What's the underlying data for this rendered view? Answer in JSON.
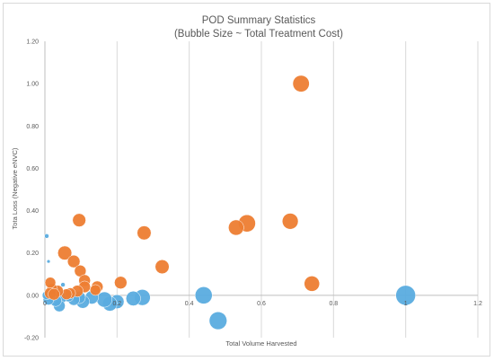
{
  "chart_data": {
    "type": "scatter",
    "title": "POD Summary Statistics",
    "subtitle": "(Bubble Size ~ Total Treatment Cost)",
    "xlabel": "Total Volume Harvested",
    "ylabel": "Tota Loss (Negative eNVC)",
    "xlim": [
      0,
      1.2
    ],
    "ylim": [
      -0.2,
      1.2
    ],
    "x_ticks": [
      "0",
      "0.2",
      "0.4",
      "0.6",
      "0.8",
      "1",
      "1.2"
    ],
    "y_ticks": [
      "-0.20",
      "0.00",
      "0.20",
      "0.40",
      "0.60",
      "0.80",
      "1.00",
      "1.20"
    ],
    "grid": "vertical",
    "legend": "none",
    "series": [
      {
        "color": "#5aacdf",
        "points": [
          {
            "x": 1.0,
            "y": 0.0,
            "size": 1.0
          },
          {
            "x": 0.48,
            "y": -0.12,
            "size": 0.8
          },
          {
            "x": 0.44,
            "y": 0.0,
            "size": 0.75
          },
          {
            "x": 0.27,
            "y": -0.01,
            "size": 0.65
          },
          {
            "x": 0.245,
            "y": -0.015,
            "size": 0.55
          },
          {
            "x": 0.2,
            "y": -0.03,
            "size": 0.5
          },
          {
            "x": 0.18,
            "y": -0.04,
            "size": 0.55
          },
          {
            "x": 0.165,
            "y": -0.02,
            "size": 0.6
          },
          {
            "x": 0.13,
            "y": -0.01,
            "size": 0.45
          },
          {
            "x": 0.105,
            "y": -0.03,
            "size": 0.45
          },
          {
            "x": 0.095,
            "y": -0.01,
            "size": 0.4
          },
          {
            "x": 0.08,
            "y": -0.02,
            "size": 0.35
          },
          {
            "x": 0.065,
            "y": -0.005,
            "size": 0.3
          },
          {
            "x": 0.045,
            "y": -0.01,
            "size": 0.35
          },
          {
            "x": 0.04,
            "y": -0.05,
            "size": 0.35
          },
          {
            "x": 0.03,
            "y": -0.025,
            "size": 0.35
          },
          {
            "x": 0.025,
            "y": 0.01,
            "size": 0.3
          },
          {
            "x": 0.015,
            "y": -0.005,
            "size": 0.3
          },
          {
            "x": 0.01,
            "y": -0.02,
            "size": 0.3
          },
          {
            "x": 0.005,
            "y": 0.0,
            "size": 0.2
          },
          {
            "x": 0.005,
            "y": 0.28,
            "size": 0.05
          },
          {
            "x": 0.01,
            "y": 0.16,
            "size": 0.03
          },
          {
            "x": 0.05,
            "y": 0.05,
            "size": 0.05
          },
          {
            "x": 0.035,
            "y": 0.03,
            "size": 0.08
          }
        ]
      },
      {
        "color": "#ed7d31",
        "points": [
          {
            "x": 0.71,
            "y": 1.0,
            "size": 0.7
          },
          {
            "x": 0.56,
            "y": 0.34,
            "size": 0.75
          },
          {
            "x": 0.53,
            "y": 0.32,
            "size": 0.6
          },
          {
            "x": 0.68,
            "y": 0.35,
            "size": 0.65
          },
          {
            "x": 0.74,
            "y": 0.055,
            "size": 0.6
          },
          {
            "x": 0.325,
            "y": 0.135,
            "size": 0.5
          },
          {
            "x": 0.275,
            "y": 0.295,
            "size": 0.5
          },
          {
            "x": 0.21,
            "y": 0.06,
            "size": 0.4
          },
          {
            "x": 0.095,
            "y": 0.355,
            "size": 0.45
          },
          {
            "x": 0.055,
            "y": 0.2,
            "size": 0.5
          },
          {
            "x": 0.08,
            "y": 0.16,
            "size": 0.4
          },
          {
            "x": 0.098,
            "y": 0.115,
            "size": 0.35
          },
          {
            "x": 0.11,
            "y": 0.07,
            "size": 0.35
          },
          {
            "x": 0.11,
            "y": 0.04,
            "size": 0.35
          },
          {
            "x": 0.145,
            "y": 0.04,
            "size": 0.35
          },
          {
            "x": 0.14,
            "y": 0.025,
            "size": 0.3
          },
          {
            "x": 0.09,
            "y": 0.02,
            "size": 0.35
          },
          {
            "x": 0.07,
            "y": 0.01,
            "size": 0.3
          },
          {
            "x": 0.06,
            "y": 0.005,
            "size": 0.3
          },
          {
            "x": 0.035,
            "y": 0.02,
            "size": 0.35
          },
          {
            "x": 0.02,
            "y": 0.03,
            "size": 0.3
          },
          {
            "x": 0.015,
            "y": 0.01,
            "size": 0.35
          },
          {
            "x": 0.015,
            "y": 0.06,
            "size": 0.3
          },
          {
            "x": 0.025,
            "y": 0.005,
            "size": 0.35
          }
        ]
      }
    ]
  }
}
